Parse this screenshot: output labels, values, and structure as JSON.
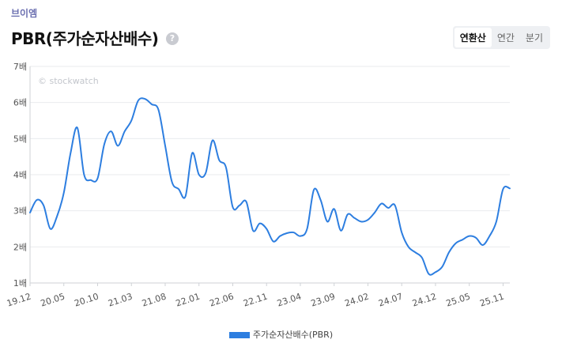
{
  "header": {
    "company": "브이엠",
    "title": "PBR(주가순자산배수)",
    "help_icon": "?"
  },
  "tabs": [
    {
      "label": "연환산",
      "active": true
    },
    {
      "label": "연간",
      "active": false
    },
    {
      "label": "분기",
      "active": false
    }
  ],
  "watermark": "© stockwatch",
  "colors": {
    "line": "#2d7ee0"
  },
  "chart_data": {
    "type": "line",
    "ylim": [
      1,
      7
    ],
    "y_ticks": [
      {
        "value": 1,
        "label": "1배"
      },
      {
        "value": 2,
        "label": "2배"
      },
      {
        "value": 3,
        "label": "3배"
      },
      {
        "value": 4,
        "label": "4배"
      },
      {
        "value": 5,
        "label": "5배"
      },
      {
        "value": 6,
        "label": "6배"
      },
      {
        "value": 7,
        "label": "7배"
      }
    ],
    "x_ticks": [
      {
        "index": 0,
        "label": "19.12"
      },
      {
        "index": 5,
        "label": "20.05"
      },
      {
        "index": 10,
        "label": "20.10"
      },
      {
        "index": 15,
        "label": "21.03"
      },
      {
        "index": 20,
        "label": "21.08"
      },
      {
        "index": 25,
        "label": "22.01"
      },
      {
        "index": 30,
        "label": "22.06"
      },
      {
        "index": 35,
        "label": "22.11"
      },
      {
        "index": 40,
        "label": "23.04"
      },
      {
        "index": 45,
        "label": "23.09"
      },
      {
        "index": 50,
        "label": "24.02"
      },
      {
        "index": 55,
        "label": "24.07"
      },
      {
        "index": 60,
        "label": "24.12"
      },
      {
        "index": 65,
        "label": "25.05"
      },
      {
        "index": 70,
        "label": "25.11"
      }
    ],
    "series": [
      {
        "name": "주가순자산배수(PBR)",
        "values": [
          2.95,
          3.3,
          3.15,
          2.5,
          2.85,
          3.5,
          4.6,
          5.3,
          4.0,
          3.85,
          3.9,
          4.85,
          5.2,
          4.8,
          5.2,
          5.5,
          6.05,
          6.1,
          5.95,
          5.8,
          4.8,
          3.8,
          3.6,
          3.4,
          4.6,
          4.0,
          4.05,
          4.95,
          4.4,
          4.2,
          3.1,
          3.15,
          3.25,
          2.45,
          2.65,
          2.5,
          2.15,
          2.3,
          2.38,
          2.4,
          2.3,
          2.5,
          3.58,
          3.3,
          2.7,
          3.05,
          2.45,
          2.9,
          2.8,
          2.7,
          2.75,
          2.95,
          3.2,
          3.08,
          3.15,
          2.4,
          2.0,
          1.85,
          1.7,
          1.25,
          1.3,
          1.45,
          1.85,
          2.1,
          2.2,
          2.3,
          2.25,
          2.05,
          2.3,
          2.7,
          3.6,
          3.62
        ]
      }
    ]
  }
}
